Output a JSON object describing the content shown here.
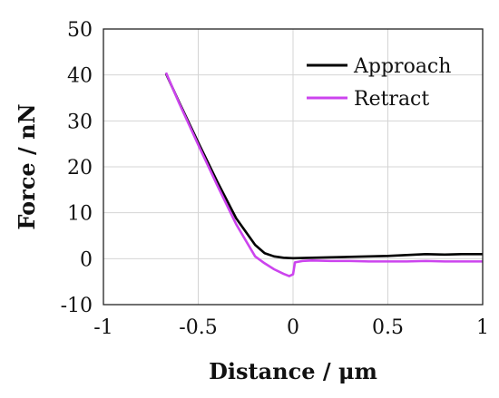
{
  "chart_data": {
    "type": "line",
    "xlabel": "Distance / μm",
    "ylabel": "Force / nN",
    "xlim": [
      -1,
      1
    ],
    "ylim": [
      -10,
      50
    ],
    "xticks": [
      -1,
      -0.5,
      0,
      0.5,
      1
    ],
    "yticks": [
      -10,
      0,
      10,
      20,
      30,
      40,
      50
    ],
    "xtick_labels": [
      "-1",
      "-0.5",
      "0",
      "0.5",
      "1"
    ],
    "ytick_labels": [
      "-10",
      "0",
      "10",
      "20",
      "30",
      "40",
      "50"
    ],
    "grid": true,
    "legend_position": "top-right",
    "series": [
      {
        "name": "Approach",
        "color": "#000000",
        "points": [
          [
            -0.67,
            40.3
          ],
          [
            -0.6,
            34.0
          ],
          [
            -0.5,
            25.3
          ],
          [
            -0.4,
            16.8
          ],
          [
            -0.3,
            8.8
          ],
          [
            -0.2,
            3.0
          ],
          [
            -0.15,
            1.2
          ],
          [
            -0.1,
            0.5
          ],
          [
            -0.05,
            0.2
          ],
          [
            0.0,
            0.1
          ],
          [
            0.1,
            0.2
          ],
          [
            0.2,
            0.3
          ],
          [
            0.3,
            0.4
          ],
          [
            0.4,
            0.5
          ],
          [
            0.5,
            0.6
          ],
          [
            0.6,
            0.8
          ],
          [
            0.7,
            1.0
          ],
          [
            0.8,
            0.9
          ],
          [
            0.9,
            1.0
          ],
          [
            1.0,
            1.0
          ]
        ]
      },
      {
        "name": "Retract",
        "color": "#cc44ee",
        "points": [
          [
            -0.67,
            40.5
          ],
          [
            -0.6,
            33.8
          ],
          [
            -0.5,
            24.8
          ],
          [
            -0.4,
            16.0
          ],
          [
            -0.3,
            7.5
          ],
          [
            -0.2,
            0.5
          ],
          [
            -0.15,
            -1.0
          ],
          [
            -0.1,
            -2.3
          ],
          [
            -0.05,
            -3.3
          ],
          [
            -0.02,
            -3.8
          ],
          [
            0.0,
            -3.4
          ],
          [
            0.01,
            -0.8
          ],
          [
            0.05,
            -0.5
          ],
          [
            0.1,
            -0.4
          ],
          [
            0.2,
            -0.5
          ],
          [
            0.3,
            -0.5
          ],
          [
            0.4,
            -0.6
          ],
          [
            0.5,
            -0.6
          ],
          [
            0.6,
            -0.6
          ],
          [
            0.7,
            -0.5
          ],
          [
            0.8,
            -0.6
          ],
          [
            0.9,
            -0.6
          ],
          [
            1.0,
            -0.6
          ]
        ]
      }
    ]
  }
}
